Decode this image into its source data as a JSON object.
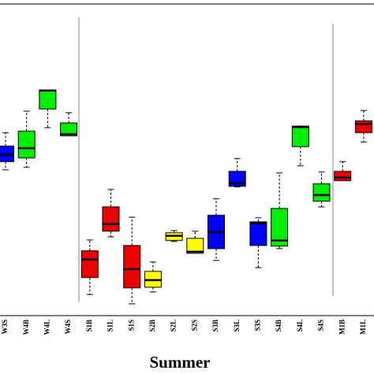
{
  "chart_data": {
    "type": "box",
    "x_label": "Summer",
    "categories": [
      "W3S",
      "W4B",
      "W4L",
      "W4S",
      "S1B",
      "S1L",
      "S1S",
      "S2B",
      "S2L",
      "S2S",
      "S3B",
      "S3L",
      "S3S",
      "S4B",
      "S4L",
      "S4S",
      "M1B",
      "M1L"
    ],
    "colors": [
      "#0000ff",
      "#00ee00",
      "#00ee00",
      "#00ee00",
      "#ee0000",
      "#ee0000",
      "#ee0000",
      "#ffff00",
      "#ffff00",
      "#ffff00",
      "#0000ff",
      "#0000ff",
      "#0000ff",
      "#00ee00",
      "#00ee00",
      "#00ee00",
      "#ee0000",
      "#ee0000"
    ],
    "boxes": [
      {
        "min": 46.8,
        "q1": 49.4,
        "median": 51.6,
        "q3": 54.4,
        "max": 58.7
      },
      {
        "min": 47.6,
        "q1": 50.6,
        "median": 53.7,
        "q3": 59.2,
        "max": 65.6
      },
      {
        "min": 60.3,
        "q1": 66.3,
        "median": 72.2,
        "q3": 72.4,
        "max": 72.4
      },
      {
        "min": 57.7,
        "q1": 57.7,
        "median": 58.2,
        "q3": 61.8,
        "max": 65.1
      },
      {
        "min": 6.8,
        "q1": 12.2,
        "median": 18.0,
        "q3": 20.8,
        "max": 24.3
      },
      {
        "min": 25.3,
        "q1": 27.1,
        "median": 29.4,
        "q3": 34.9,
        "max": 40.5
      },
      {
        "min": 3.8,
        "q1": 8.9,
        "median": 14.9,
        "q3": 22.5,
        "max": 31.6
      },
      {
        "min": 7.6,
        "q1": 9.1,
        "median": 11.4,
        "q3": 14.2,
        "max": 17.2
      },
      {
        "min": 23.8,
        "q1": 24.1,
        "median": 25.6,
        "q3": 26.6,
        "max": 27.3
      },
      {
        "min": 20.0,
        "q1": 20.0,
        "median": 20.5,
        "q3": 24.8,
        "max": 27.1
      },
      {
        "min": 17.7,
        "q1": 21.5,
        "median": 26.8,
        "q3": 32.2,
        "max": 37.5
      },
      {
        "min": 41.3,
        "q1": 41.5,
        "median": 42.5,
        "q3": 46.3,
        "max": 50.4
      },
      {
        "min": 15.4,
        "q1": 22.5,
        "median": 29.6,
        "q3": 30.1,
        "max": 31.4
      },
      {
        "min": 21.5,
        "q1": 22.3,
        "median": 24.1,
        "q3": 34.4,
        "max": 45.8
      },
      {
        "min": 48.1,
        "q1": 54.2,
        "median": 60.5,
        "q3": 60.8,
        "max": 60.8
      },
      {
        "min": 34.9,
        "q1": 36.7,
        "median": 38.7,
        "q3": 42.3,
        "max": 46.1
      },
      {
        "min": 43.3,
        "q1": 43.3,
        "median": 44.3,
        "q3": 46.3,
        "max": 49.4
      },
      {
        "min": 55.7,
        "q1": 58.7,
        "median": 61.5,
        "q3": 62.5,
        "max": 65.8
      }
    ],
    "ylim": [
      0,
      100
    ]
  }
}
